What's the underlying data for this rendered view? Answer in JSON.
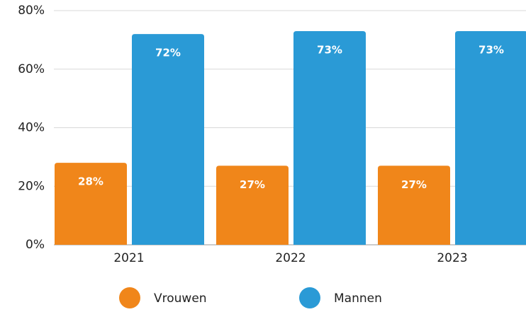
{
  "chart_data": {
    "type": "bar",
    "categories": [
      "2021",
      "2022",
      "2023"
    ],
    "series": [
      {
        "name": "Vrouwen",
        "color": "#f0861a",
        "values": [
          28,
          27,
          27
        ],
        "value_labels": [
          "28%",
          "27%",
          "27%"
        ]
      },
      {
        "name": "Mannen",
        "color": "#2a9ad6",
        "values": [
          72,
          73,
          73
        ],
        "value_labels": [
          "72%",
          "73%",
          "73%"
        ]
      }
    ],
    "ylim": [
      0,
      80
    ],
    "yticks": [
      {
        "value": 0,
        "label": "0%"
      },
      {
        "value": 20,
        "label": "20%"
      },
      {
        "value": 40,
        "label": "40%"
      },
      {
        "value": 60,
        "label": "60%"
      },
      {
        "value": 80,
        "label": "80%"
      }
    ],
    "grid": true,
    "legend": "bottom"
  }
}
